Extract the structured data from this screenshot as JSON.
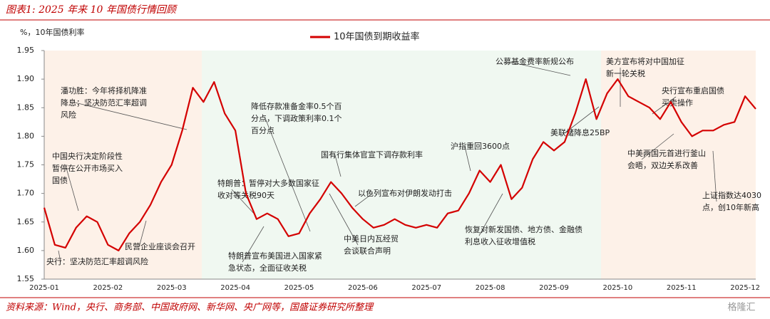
{
  "chart_data": {
    "type": "line",
    "title": "图表1: 2025 年来 10 年国债行情回顾",
    "y_axis_label": "%，10年国债利率",
    "source": "资料来源：Wind，央行、商务部、中国政府网、新华网、央广网等，国盛证券研究所整理",
    "watermark": "格隆汇",
    "categories": [
      "2025-01",
      null,
      null,
      null,
      null,
      null,
      "2025-02",
      null,
      null,
      null,
      null,
      null,
      "2025-03",
      null,
      null,
      null,
      null,
      null,
      "2025-04",
      null,
      null,
      null,
      null,
      null,
      "2025-05",
      null,
      null,
      null,
      null,
      null,
      "2025-06",
      null,
      null,
      null,
      null,
      null,
      "2025-07",
      null,
      null,
      null,
      null,
      null,
      "2025-08",
      null,
      null,
      null,
      null,
      null,
      "2025-09",
      null,
      null,
      null,
      null,
      null,
      "2025-10",
      null,
      null,
      null,
      null,
      null,
      "2025-11",
      null,
      null,
      null,
      null,
      null,
      "2025-12",
      null
    ],
    "series": [
      {
        "name": "10年国债到期收益率",
        "color": "#d40000",
        "values": [
          1.675,
          1.61,
          1.605,
          1.64,
          1.66,
          1.65,
          1.61,
          1.6,
          1.63,
          1.65,
          1.68,
          1.72,
          1.75,
          1.81,
          1.885,
          1.86,
          1.895,
          1.84,
          1.81,
          1.7,
          1.655,
          1.665,
          1.655,
          1.625,
          1.63,
          1.665,
          1.69,
          1.72,
          1.7,
          1.675,
          1.655,
          1.64,
          1.645,
          1.655,
          1.645,
          1.64,
          1.645,
          1.64,
          1.665,
          1.67,
          1.7,
          1.74,
          1.72,
          1.75,
          1.69,
          1.71,
          1.76,
          1.79,
          1.775,
          1.79,
          1.84,
          1.9,
          1.83,
          1.875,
          1.9,
          1.87,
          1.86,
          1.85,
          1.83,
          1.86,
          1.825,
          1.8,
          1.81,
          1.81,
          1.82,
          1.825,
          1.87,
          1.848
        ]
      }
    ],
    "ylim": [
      1.55,
      1.95
    ],
    "yticks": [
      1.55,
      {
        "value": 1.6,
        "label": "1.60"
      },
      1.65,
      {
        "value": 1.7,
        "label": "1.70"
      },
      1.75,
      {
        "value": 1.8,
        "label": "1.80"
      },
      1.85,
      {
        "value": 1.9,
        "label": "1.90"
      },
      1.95
    ],
    "grid": false,
    "annotations": [
      [
        "潘功胜：今年将择机降准",
        "降息；坚决防范汇率超调",
        "风险"
      ],
      [
        "中国央行决定阶段性",
        "暂停在公开市场买入",
        "国债"
      ],
      [
        "央行：坚决防范汇率超调风险"
      ],
      [
        "民营企业座谈会召开"
      ],
      [
        "降低存款准备金率0.5个百",
        "分点，下调政策利率0.1个",
        "百分点"
      ],
      [
        "特朗普：暂停对大多数国家征",
        "收对等关税90天"
      ],
      [
        "特朗普宣布美国进入国家紧",
        "急状态，全面征收关税"
      ],
      [
        "国有行集体官宣下调存款利率"
      ],
      [
        "以色列宣布对伊朗发动打击"
      ],
      [
        "中美日内瓦经贸",
        "会谈联合声明"
      ],
      [
        "沪指重回3600点"
      ],
      [
        "恢复对新发国债、地方债、金融债",
        "利息收入征收增值税"
      ],
      [
        "公募基金费率新规公布"
      ],
      [
        "美联储降息25BP"
      ],
      [
        "美方宣布将对中国加征",
        "新一轮关税"
      ],
      [
        "央行宣布重启国债",
        "买卖操作"
      ],
      [
        "中美两国元首进行釜山",
        "会晤，双边关系改善"
      ],
      [
        "上证指数达4030",
        "点，创10年新高"
      ]
    ]
  }
}
